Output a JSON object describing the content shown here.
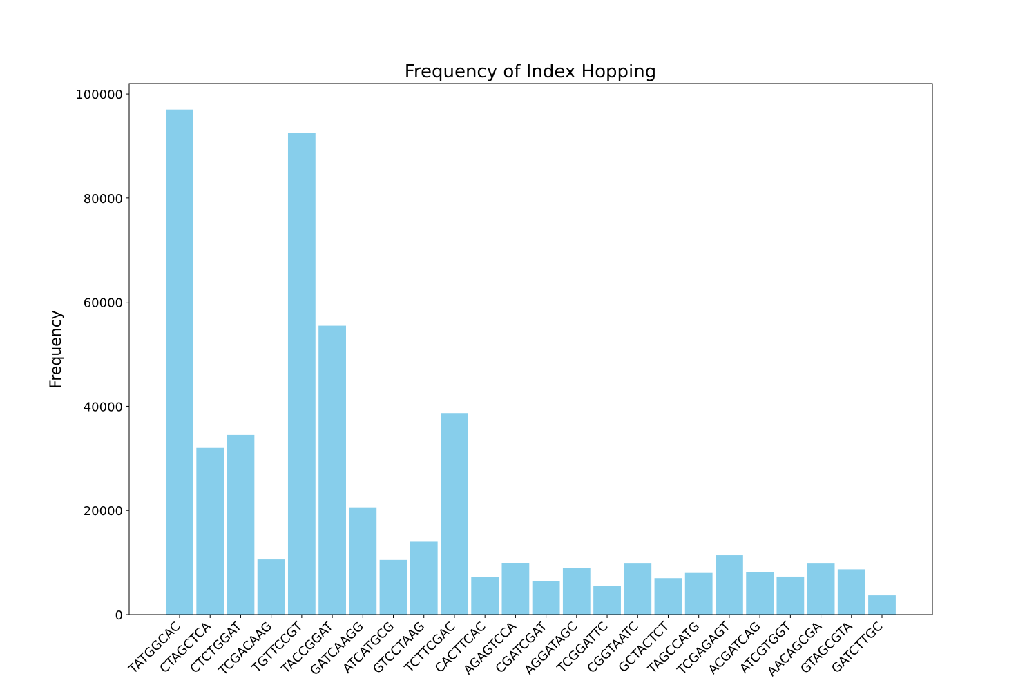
{
  "chart_data": {
    "type": "bar",
    "title": "Frequency of Index Hopping",
    "xlabel": "",
    "ylabel": "Frequency",
    "ylim": [
      0,
      102000
    ],
    "yticks": [
      0,
      20000,
      40000,
      60000,
      80000,
      100000
    ],
    "grid": false,
    "bar_color": "#87CEEB",
    "categories": [
      "TATGGCAC",
      "CTAGCTCA",
      "CTCTGGAT",
      "TCGACAAG",
      "TGTTCCGT",
      "TACCGGAT",
      "GATCAAGG",
      "ATCATGCG",
      "GTCCTAAG",
      "TCTTCGAC",
      "CACTTCAC",
      "AGAGTCCA",
      "CGATCGAT",
      "AGGATAGC",
      "TCGGATTC",
      "CGGTAATC",
      "GCTACTCT",
      "TAGCCATG",
      "TCGAGAGT",
      "ACGATCAG",
      "ATCGTGGT",
      "AACAGCGA",
      "GTAGCGTA",
      "GATCTTGC"
    ],
    "values": [
      97000,
      32000,
      34500,
      10600,
      92500,
      55500,
      20600,
      10500,
      14000,
      38700,
      7200,
      9900,
      6400,
      8900,
      5500,
      9800,
      7000,
      8000,
      11400,
      8100,
      7300,
      9800,
      8700,
      3700
    ]
  }
}
